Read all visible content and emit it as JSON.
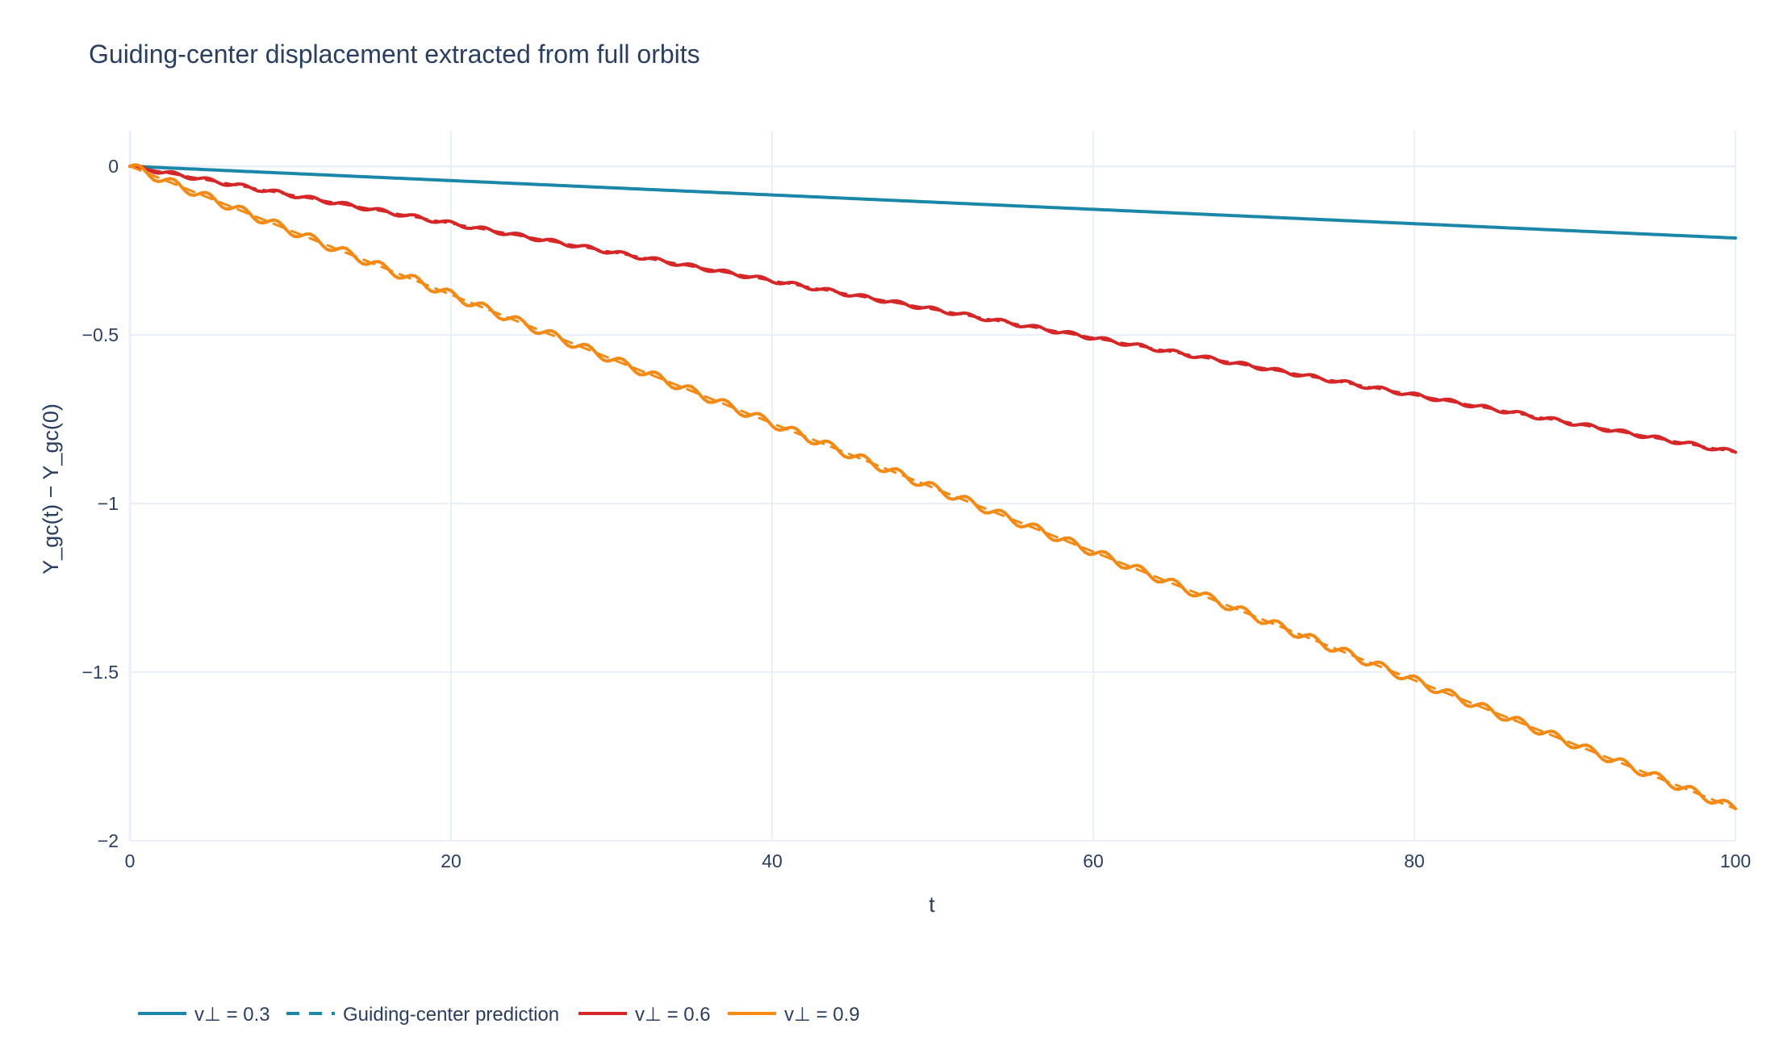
{
  "chart_data": {
    "type": "line",
    "title": "Guiding-center displacement extracted from full orbits",
    "xlabel": "t",
    "ylabel": "Y_gc(t) − Y_gc(0)",
    "xlim": [
      0,
      100
    ],
    "ylim": [
      -2,
      0.1
    ],
    "x_ticks": [
      0,
      20,
      40,
      60,
      80,
      100
    ],
    "x_tick_labels": [
      "0",
      "20",
      "40",
      "60",
      "80",
      "100"
    ],
    "y_ticks": [
      0,
      -0.5,
      -1,
      -1.5,
      -2
    ],
    "y_tick_labels": [
      "0",
      "−0.5",
      "−1",
      "−1.5",
      "−2"
    ],
    "grid": true,
    "legend_position": "bottom-left, horizontal",
    "colors": {
      "gridline": "#ebf0f8",
      "zeroline": "#ebf0f8",
      "text": "#2a3f5f"
    },
    "series": [
      {
        "name": "v⊥ = 0.3",
        "color": "#1a87a8",
        "style": "solid",
        "x": [
          0,
          100
        ],
        "y": [
          0,
          -0.213
        ],
        "wiggle": 0.0
      },
      {
        "name": "Guiding-center prediction",
        "color": "#1a87a8",
        "style": "dashed",
        "x": [
          0,
          100
        ],
        "y": [
          0,
          -0.213
        ],
        "wiggle": 0.0
      },
      {
        "name": "v⊥ = 0.6",
        "color": "#d62728",
        "style": "solid",
        "x": [
          0,
          100
        ],
        "y": [
          0,
          -0.848
        ],
        "wiggle": 0.006
      },
      {
        "name": "Guiding-center prediction",
        "color": "#d62728",
        "style": "dashed",
        "x": [
          0,
          100
        ],
        "y": [
          0,
          -0.848
        ],
        "wiggle": 0.0,
        "legend": false
      },
      {
        "name": "v⊥ = 0.9",
        "color": "#f28a15",
        "style": "solid",
        "x": [
          0,
          100
        ],
        "y": [
          0,
          -1.905
        ],
        "wiggle": 0.013
      },
      {
        "name": "Guiding-center prediction",
        "color": "#f28a15",
        "style": "dashed",
        "x": [
          0,
          100
        ],
        "y": [
          0,
          -1.905
        ],
        "wiggle": 0.0,
        "legend": false
      }
    ]
  },
  "legend": [
    {
      "label": "v⊥ = 0.3",
      "color": "#1a87a8",
      "style": "solid"
    },
    {
      "label": "Guiding-center prediction",
      "color": "#1a87a8",
      "style": "dashed"
    },
    {
      "label": "v⊥ = 0.6",
      "color": "#d62728",
      "style": "solid"
    },
    {
      "label": "v⊥ = 0.9",
      "color": "#f28a15",
      "style": "solid"
    }
  ]
}
